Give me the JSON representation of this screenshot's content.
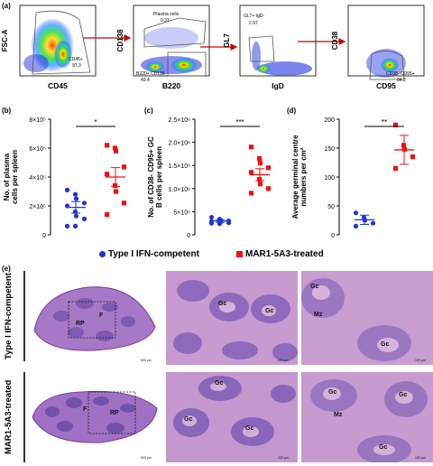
{
  "panel_labels": {
    "a": "(a)",
    "b": "(b)",
    "c": "(c)",
    "d": "(d)",
    "e": "(e)"
  },
  "flow": {
    "plots": [
      {
        "ylabel": "FSC-A",
        "xlabel": "CD45",
        "gate_text": "CD45+",
        "gate_value": "97.3"
      },
      {
        "ylabel": "CD138",
        "xlabel": "B220",
        "gate_text": "Plasma cells",
        "gate_value": "0.31",
        "gate2_text": "B220+ CD138-",
        "gate2_value": "49.4"
      },
      {
        "ylabel": "GL7",
        "xlabel": "IgD",
        "gate_text": "GL7+ IgD-",
        "gate_value": "2.97"
      },
      {
        "ylabel": "CD38",
        "xlabel": "CD95",
        "gate_text": "CD38- CD95+",
        "gate_value": "84.2"
      }
    ]
  },
  "chart_data": [
    {
      "type": "scatter",
      "panel": "b",
      "title": "",
      "xlabel": "",
      "ylabel": "No. of plasma cells per spleen",
      "ylim": [
        0,
        800000
      ],
      "yticks": [
        0,
        200000,
        400000,
        600000,
        800000
      ],
      "ytick_labels": [
        "0",
        "2×10⁵",
        "4×10⁵",
        "6×10⁵",
        "8×10⁵"
      ],
      "significance": "*",
      "series": [
        {
          "name": "Type I IFN-competent",
          "color": "#2233dd",
          "marker": "circle",
          "values": [
            310000,
            280000,
            250000,
            220000,
            200000,
            160000,
            130000,
            110000,
            60000,
            60000
          ],
          "mean": 190000,
          "sem": 40000
        },
        {
          "name": "MAR1-5A3-treated",
          "color": "#ee1111",
          "marker": "square",
          "values": [
            620000,
            600000,
            580000,
            470000,
            420000,
            340000,
            300000,
            220000,
            140000
          ],
          "mean": 400000,
          "sem": 65000
        }
      ]
    },
    {
      "type": "scatter",
      "panel": "c",
      "title": "",
      "xlabel": "",
      "ylabel": "No. of CD38- CD95+ GC B cells per spleen",
      "ylim": [
        0,
        2500000
      ],
      "yticks": [
        0,
        500000,
        1000000,
        1500000,
        2000000,
        2500000
      ],
      "ytick_labels": [
        "0",
        "5×10⁵",
        "1.0×10⁶",
        "1.5×10⁶",
        "2.0×10⁶",
        "2.5×10⁶"
      ],
      "significance": "***",
      "series": [
        {
          "name": "Type I IFN-competent",
          "color": "#2233dd",
          "marker": "circle",
          "values": [
            380000,
            340000,
            320000,
            300000,
            290000,
            280000,
            270000,
            260000,
            250000,
            240000
          ],
          "mean": 300000,
          "sem": 30000
        },
        {
          "name": "MAR1-5A3-treated",
          "color": "#ee1111",
          "marker": "square",
          "values": [
            1900000,
            1650000,
            1550000,
            1450000,
            1350000,
            1200000,
            1100000,
            1000000,
            900000
          ],
          "mean": 1300000,
          "sem": 130000
        }
      ]
    },
    {
      "type": "scatter",
      "panel": "d",
      "title": "",
      "xlabel": "",
      "ylabel": "Average germinal centre numbers per cm²",
      "ylim": [
        0,
        200
      ],
      "yticks": [
        0,
        50,
        100,
        150,
        200
      ],
      "ytick_labels": [
        "0",
        "50",
        "100",
        "150",
        "200"
      ],
      "significance": "**",
      "series": [
        {
          "name": "Type I IFN-competent",
          "color": "#2233dd",
          "marker": "circle",
          "values": [
            38,
            30,
            25,
            20,
            15
          ],
          "mean": 26,
          "sem": 8
        },
        {
          "name": "MAR1-5A3-treated",
          "color": "#ee1111",
          "marker": "square",
          "values": [
            190,
            155,
            148,
            135,
            115
          ],
          "mean": 147,
          "sem": 25
        }
      ]
    }
  ],
  "legend": {
    "item1": "Type I IFN-competent",
    "item2": "MAR1-5A3-treated"
  },
  "histology": {
    "row1_label": "Type I IFN-competent",
    "row2_label": "MAR1-5A3-treated",
    "row1": {
      "whole": {
        "labels": [
          "RP",
          "F"
        ],
        "scale": "500 μm"
      },
      "mid": {
        "labels": [
          "Gc",
          "Gc"
        ],
        "scale": "200 μm"
      },
      "zoom": {
        "labels": [
          "Gc",
          "Mz",
          "Gc"
        ],
        "scale": "100 μm"
      }
    },
    "row2": {
      "whole": {
        "labels": [
          "F",
          "RP"
        ],
        "scale": "500 μm"
      },
      "mid": {
        "labels": [
          "Gc",
          "Gc",
          "Gc"
        ],
        "scale": "200 μm"
      },
      "zoom": {
        "labels": [
          "Gc",
          "Mz",
          "Gc",
          "Gc"
        ],
        "scale": "100 μm"
      }
    }
  }
}
